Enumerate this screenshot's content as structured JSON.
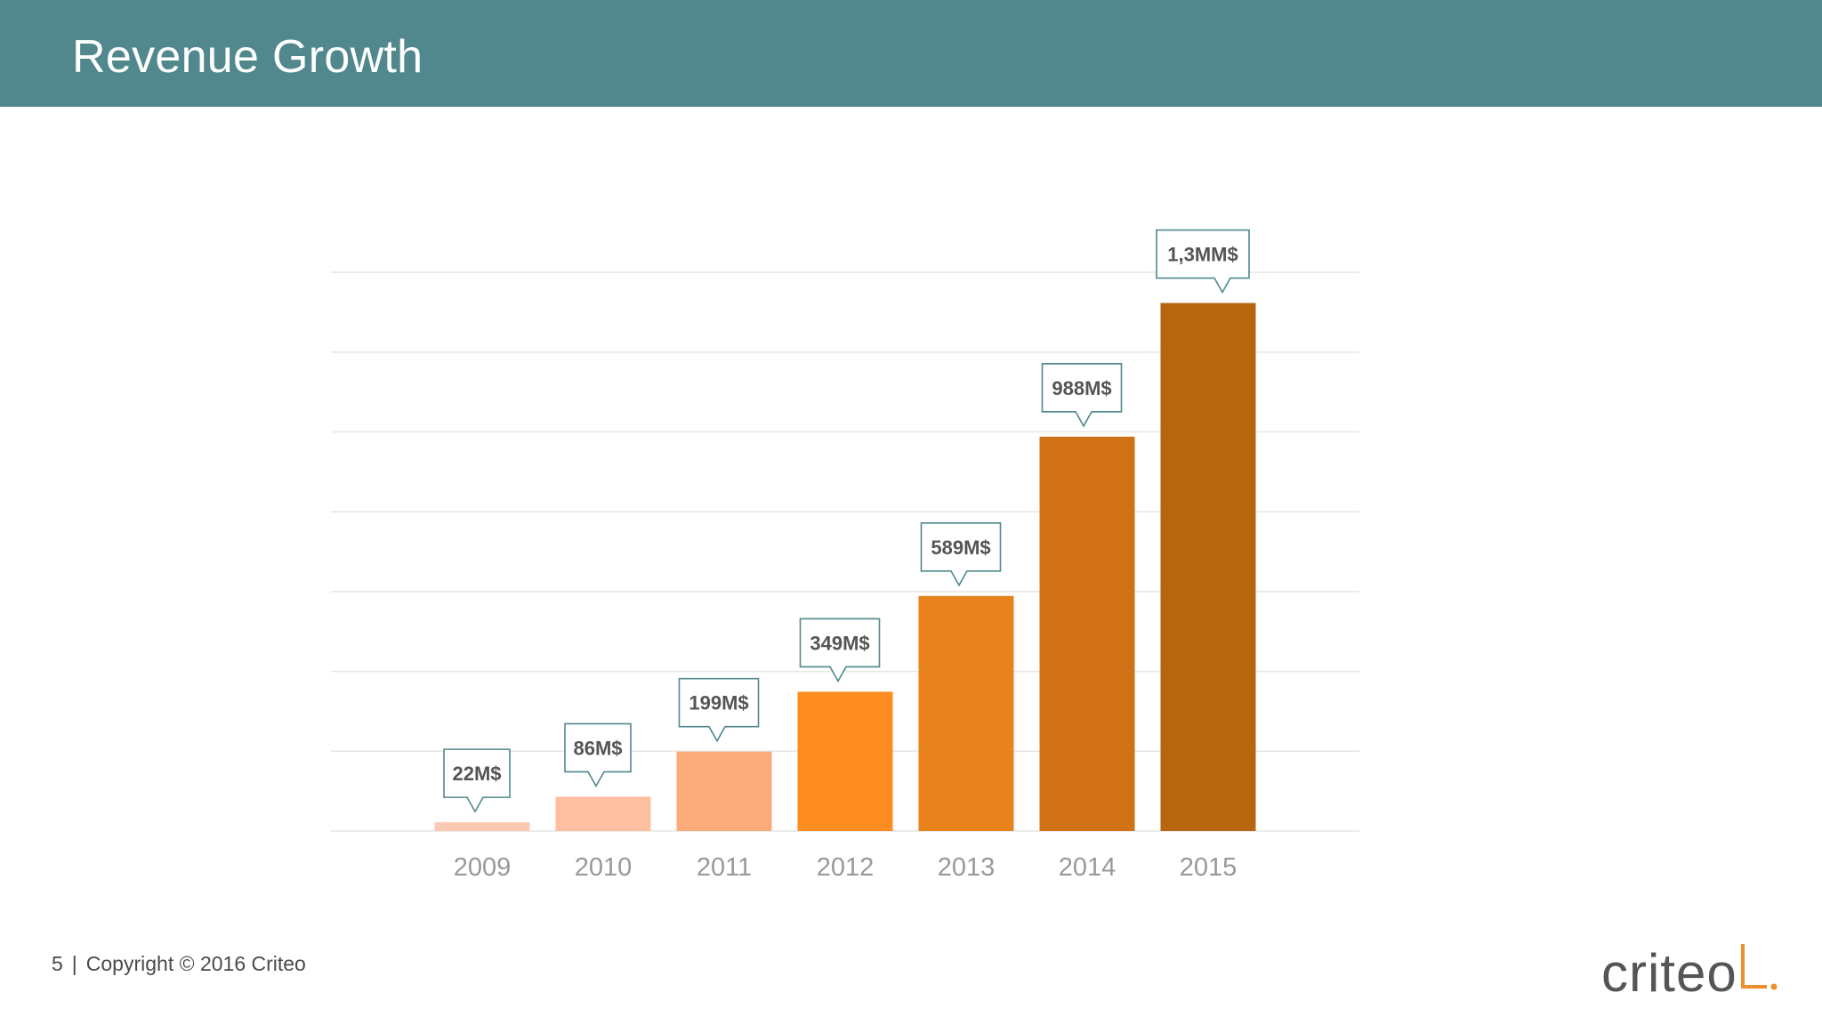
{
  "header": {
    "title": "Revenue Growth"
  },
  "footer": {
    "page_number": "5",
    "separator": "|",
    "copyright": "Copyright © 2016 Criteo"
  },
  "logo": {
    "text": "criteo",
    "accent_color": "#ee8e2c"
  },
  "colors": {
    "header_bg": "#50888d",
    "callout_border": "#50888d",
    "label_text": "#555555",
    "tick_text": "#999999",
    "grid": "#e6e6e6"
  },
  "chart_data": {
    "type": "bar",
    "title": "",
    "xlabel": "",
    "ylabel": "",
    "categories": [
      "2009",
      "2010",
      "2011",
      "2012",
      "2013",
      "2014",
      "2015"
    ],
    "values": [
      22,
      86,
      199,
      349,
      589,
      988,
      1323
    ],
    "data_labels": [
      "22M$",
      "86M$",
      "199M$",
      "349M$",
      "589M$",
      "988M$",
      "1,3MM$"
    ],
    "bar_colors": [
      "#fcc9b2",
      "#fdbfa0",
      "#fbab7a",
      "#fd8d21",
      "#e8821c",
      "#d07116",
      "#b5660f"
    ],
    "ylim": [
      0,
      1400
    ],
    "grid": true,
    "legend": "none"
  }
}
